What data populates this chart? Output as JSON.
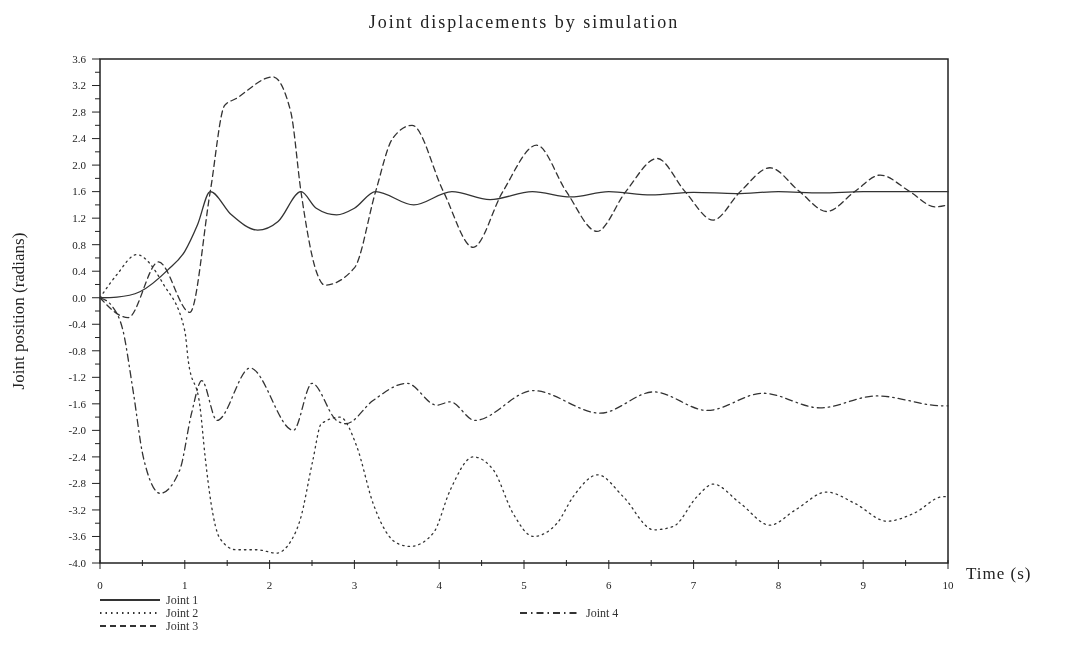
{
  "chart_data": {
    "type": "line",
    "title": "Joint displacements by simulation",
    "xlabel": "Time (s)",
    "ylabel": "Joint position (radians)",
    "xlim": [
      0,
      10
    ],
    "ylim": [
      -4.0,
      3.6
    ],
    "xticks": [
      0,
      {
        "value": 0.5,
        "label": null
      },
      1,
      {
        "value": 1.5,
        "label": null
      },
      2,
      {
        "value": 2.5,
        "label": null
      },
      3,
      {
        "value": 3.5,
        "label": null
      },
      4,
      {
        "value": 4.5,
        "label": null
      },
      5,
      {
        "value": 5.5,
        "label": null
      },
      6,
      {
        "value": 6.5,
        "label": null
      },
      7,
      {
        "value": 7.5,
        "label": null
      },
      8,
      {
        "value": 8.5,
        "label": null
      },
      9,
      {
        "value": 9.5,
        "label": null
      },
      10
    ],
    "yticks": [
      {
        "value": 3.6,
        "label": "3.6"
      },
      {
        "value": 3.4,
        "label": null
      },
      {
        "value": 3.2,
        "label": "3.2"
      },
      {
        "value": 3.0,
        "label": null
      },
      {
        "value": 2.8,
        "label": "2.8"
      },
      {
        "value": 2.6,
        "label": null
      },
      {
        "value": 2.4,
        "label": "2.4"
      },
      {
        "value": 2.2,
        "label": null
      },
      {
        "value": 2.0,
        "label": "2.0"
      },
      {
        "value": 1.8,
        "label": null
      },
      {
        "value": 1.6,
        "label": "1.6"
      },
      {
        "value": 1.4,
        "label": null
      },
      {
        "value": 1.2,
        "label": "1.2"
      },
      {
        "value": 1.0,
        "label": null
      },
      {
        "value": 0.8,
        "label": "0.8"
      },
      {
        "value": 0.6,
        "label": null
      },
      {
        "value": 0.4,
        "label": "0.4"
      },
      {
        "value": 0.2,
        "label": null
      },
      {
        "value": 0,
        "label": "0.0"
      },
      {
        "value": -0.2,
        "label": null
      },
      {
        "value": -0.4,
        "label": "-0.4"
      },
      {
        "value": -0.6,
        "label": null
      },
      {
        "value": -0.8,
        "label": "-0.8"
      },
      {
        "value": -1.0,
        "label": null
      },
      {
        "value": -1.2,
        "label": "-1.2"
      },
      {
        "value": -1.4,
        "label": null
      },
      {
        "value": -1.6,
        "label": "-1.6"
      },
      {
        "value": -1.8,
        "label": null
      },
      {
        "value": -2.0,
        "label": "-2.0"
      },
      {
        "value": -2.2,
        "label": null
      },
      {
        "value": -2.4,
        "label": "-2.4"
      },
      {
        "value": -2.6,
        "label": null
      },
      {
        "value": -2.8,
        "label": "-2.8"
      },
      {
        "value": -3.0,
        "label": null
      },
      {
        "value": -3.2,
        "label": "-3.2"
      },
      {
        "value": -3.4,
        "label": null
      },
      {
        "value": -3.6,
        "label": "-3.6"
      },
      {
        "value": -3.8,
        "label": null
      },
      {
        "value": -4.0,
        "label": "-4.0"
      }
    ],
    "grid": false,
    "legend": "bottom",
    "marker": "none",
    "series": [
      {
        "name": "Joint 1",
        "color": "#333333",
        "line_style": "solid",
        "x": [
          0,
          0.2,
          0.47,
          0.8,
          1.0,
          1.15,
          1.3,
          1.55,
          1.86,
          2.1,
          2.37,
          2.55,
          2.79,
          3.0,
          3.25,
          3.7,
          4.15,
          4.6,
          5.1,
          5.55,
          6.0,
          6.5,
          7.0,
          7.5,
          8.0,
          8.5,
          9.0,
          9.5,
          10
        ],
        "values": [
          0,
          0.01,
          0.09,
          0.42,
          0.7,
          1.1,
          1.6,
          1.25,
          1.02,
          1.15,
          1.6,
          1.35,
          1.25,
          1.35,
          1.6,
          1.4,
          1.6,
          1.48,
          1.6,
          1.52,
          1.6,
          1.55,
          1.59,
          1.57,
          1.6,
          1.58,
          1.6,
          1.6,
          1.6
        ]
      },
      {
        "name": "Joint 2",
        "color": "#333333",
        "line_style": "dotted",
        "x": [
          0,
          0.2,
          0.43,
          0.75,
          1.0,
          1.04,
          1.18,
          1.24,
          1.31,
          1.41,
          1.6,
          1.85,
          2.08,
          2.26,
          2.36,
          2.51,
          2.61,
          2.83,
          3.03,
          3.22,
          3.5,
          3.66,
          3.93,
          4.13,
          4.4,
          4.64,
          4.87,
          5.11,
          5.39,
          5.58,
          5.87,
          6.17,
          6.53,
          6.76,
          7.04,
          7.23,
          7.55,
          7.9,
          8.2,
          8.57,
          8.9,
          9.28,
          9.6,
          9.94,
          10
        ],
        "values": [
          0,
          0.35,
          0.65,
          0.2,
          -0.5,
          -0.94,
          -1.65,
          -2.4,
          -3.1,
          -3.62,
          -3.8,
          -3.8,
          -3.85,
          -3.65,
          -3.35,
          -2.45,
          -1.9,
          -1.8,
          -2.25,
          -3.1,
          -3.7,
          -3.75,
          -3.55,
          -2.9,
          -2.4,
          -2.6,
          -3.25,
          -3.6,
          -3.4,
          -3.0,
          -2.67,
          -3.0,
          -3.5,
          -3.45,
          -3.0,
          -2.81,
          -3.1,
          -3.43,
          -3.2,
          -2.93,
          -3.1,
          -3.37,
          -3.25,
          -3.0,
          -3.0
        ]
      },
      {
        "name": "Joint 3",
        "color": "#333333",
        "line_style": "dashed",
        "x": [
          0,
          0.33,
          0.69,
          1.06,
          1.3,
          1.47,
          1.6,
          2.04,
          2.25,
          2.37,
          2.55,
          2.65,
          3.0,
          3.25,
          3.45,
          3.68,
          4.05,
          4.4,
          4.75,
          5.15,
          5.5,
          5.86,
          6.2,
          6.57,
          6.9,
          7.23,
          7.55,
          7.9,
          8.25,
          8.57,
          8.9,
          9.2,
          9.55,
          9.85,
          10
        ],
        "values": [
          0,
          -0.3,
          0.54,
          -0.22,
          1.6,
          2.9,
          3.0,
          3.33,
          2.8,
          1.6,
          0.4,
          0.19,
          0.45,
          1.6,
          2.4,
          2.6,
          1.6,
          0.76,
          1.6,
          2.3,
          1.6,
          1.0,
          1.6,
          2.1,
          1.6,
          1.17,
          1.6,
          1.96,
          1.6,
          1.3,
          1.6,
          1.85,
          1.6,
          1.37,
          1.4
        ]
      },
      {
        "name": "Joint 4",
        "color": "#333333",
        "line_style": "dashdot",
        "x": [
          0,
          0.15,
          0.27,
          0.39,
          0.51,
          0.71,
          0.94,
          1.08,
          1.2,
          1.38,
          1.77,
          2.28,
          2.5,
          2.79,
          2.9,
          3.22,
          3.62,
          3.97,
          4.13,
          4.42,
          5.11,
          5.9,
          6.53,
          7.16,
          7.82,
          8.49,
          9.16,
          9.94,
          10
        ],
        "values": [
          0,
          -0.14,
          -0.49,
          -1.4,
          -2.4,
          -2.95,
          -2.6,
          -1.74,
          -1.25,
          -1.85,
          -1.06,
          -2.0,
          -1.29,
          -1.85,
          -1.9,
          -1.55,
          -1.29,
          -1.62,
          -1.57,
          -1.85,
          -1.4,
          -1.74,
          -1.42,
          -1.7,
          -1.44,
          -1.66,
          -1.48,
          -1.63,
          -1.63
        ]
      }
    ]
  }
}
